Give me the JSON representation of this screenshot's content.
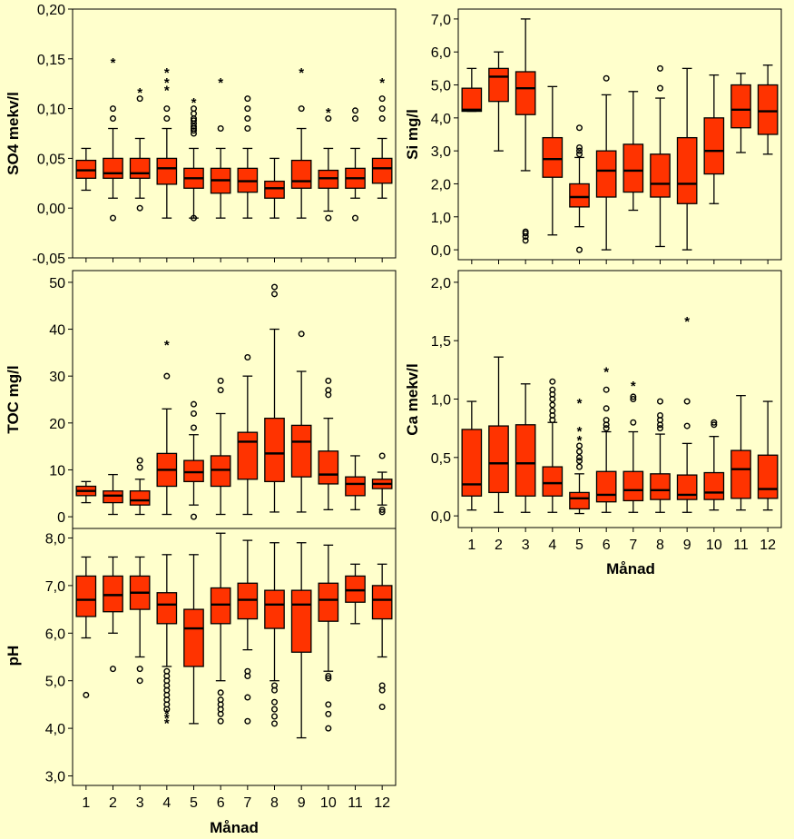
{
  "colors": {
    "box_fill": "#ff3300",
    "panel_bg": "#ffffcc",
    "page_bg": "#ffffcc",
    "ink": "#000000"
  },
  "chart_data": [
    {
      "id": "so4",
      "type": "boxplot",
      "ylabel": "SO4  mekv/l",
      "xlabel": "",
      "ylim": [
        -0.05,
        0.2
      ],
      "yticks": [
        -0.05,
        0.0,
        0.05,
        0.1,
        0.15,
        0.2
      ],
      "ytick_labels": [
        "-0,05",
        "0,00",
        "0,05",
        "0,10",
        "0,15",
        "0,20"
      ],
      "categories": [
        "1",
        "2",
        "3",
        "4",
        "5",
        "6",
        "7",
        "8",
        "9",
        "10",
        "11",
        "12"
      ],
      "show_xticklabels": false,
      "boxes": [
        {
          "low": 0.018,
          "q1": 0.03,
          "median": 0.038,
          "q3": 0.048,
          "high": 0.06,
          "outliers": [],
          "extremes": []
        },
        {
          "low": 0.01,
          "q1": 0.03,
          "median": 0.035,
          "q3": 0.05,
          "high": 0.08,
          "outliers": [
            -0.01,
            0.09,
            0.1
          ],
          "extremes": [
            0.148
          ]
        },
        {
          "low": 0.01,
          "q1": 0.03,
          "median": 0.035,
          "q3": 0.05,
          "high": 0.07,
          "outliers": [
            0.0,
            0.11
          ],
          "extremes": [
            0.118
          ]
        },
        {
          "low": -0.01,
          "q1": 0.024,
          "median": 0.04,
          "q3": 0.05,
          "high": 0.08,
          "outliers": [
            0.09,
            0.1
          ],
          "extremes": [
            0.12,
            0.128,
            0.138
          ]
        },
        {
          "low": -0.01,
          "q1": 0.02,
          "median": 0.03,
          "q3": 0.04,
          "high": 0.06,
          "outliers": [
            -0.01,
            0.075,
            0.078,
            0.08,
            0.082,
            0.085,
            0.088,
            0.09,
            0.095,
            0.1
          ],
          "extremes": [
            0.108
          ]
        },
        {
          "low": -0.01,
          "q1": 0.015,
          "median": 0.028,
          "q3": 0.04,
          "high": 0.06,
          "outliers": [
            0.08
          ],
          "extremes": [
            0.128
          ]
        },
        {
          "low": -0.01,
          "q1": 0.016,
          "median": 0.027,
          "q3": 0.04,
          "high": 0.06,
          "outliers": [
            0.08,
            0.09,
            0.1,
            0.11
          ],
          "extremes": []
        },
        {
          "low": -0.01,
          "q1": 0.01,
          "median": 0.02,
          "q3": 0.027,
          "high": 0.05,
          "outliers": [],
          "extremes": []
        },
        {
          "low": -0.01,
          "q1": 0.02,
          "median": 0.027,
          "q3": 0.048,
          "high": 0.08,
          "outliers": [
            0.1
          ],
          "extremes": [
            0.138
          ]
        },
        {
          "low": -0.003,
          "q1": 0.02,
          "median": 0.03,
          "q3": 0.038,
          "high": 0.06,
          "outliers": [
            -0.01,
            0.09
          ],
          "extremes": [
            0.098
          ]
        },
        {
          "low": 0.01,
          "q1": 0.02,
          "median": 0.03,
          "q3": 0.04,
          "high": 0.06,
          "outliers": [
            -0.01,
            0.09,
            0.098
          ],
          "extremes": []
        },
        {
          "low": 0.01,
          "q1": 0.025,
          "median": 0.04,
          "q3": 0.05,
          "high": 0.07,
          "outliers": [
            0.09,
            0.1,
            0.11
          ],
          "extremes": [
            0.128
          ]
        }
      ]
    },
    {
      "id": "si",
      "type": "boxplot",
      "ylabel": "Si  mg/l",
      "xlabel": "",
      "ylim": [
        -0.3,
        7.3
      ],
      "yticks": [
        0,
        1,
        2,
        3,
        4,
        5,
        6,
        7
      ],
      "ytick_labels": [
        "0,0",
        "1,0",
        "2,0",
        "3,0",
        "4,0",
        "5,0",
        "6,0",
        "7,0"
      ],
      "categories": [
        "1",
        "2",
        "3",
        "4",
        "5",
        "6",
        "7",
        "8",
        "9",
        "10",
        "11",
        "12"
      ],
      "show_xticklabels": false,
      "boxes": [
        {
          "low": 4.2,
          "q1": 4.2,
          "median": 4.25,
          "q3": 4.9,
          "high": 5.5,
          "outliers": [],
          "extremes": []
        },
        {
          "low": 3.0,
          "q1": 4.5,
          "median": 5.25,
          "q3": 5.5,
          "high": 6.0,
          "outliers": [],
          "extremes": []
        },
        {
          "low": 2.4,
          "q1": 4.1,
          "median": 4.9,
          "q3": 5.4,
          "high": 7.0,
          "outliers": [
            0.28,
            0.4,
            0.5,
            0.55
          ],
          "extremes": []
        },
        {
          "low": 0.45,
          "q1": 2.2,
          "median": 2.75,
          "q3": 3.4,
          "high": 4.95,
          "outliers": [],
          "extremes": []
        },
        {
          "low": 0.7,
          "q1": 1.3,
          "median": 1.6,
          "q3": 2.0,
          "high": 2.8,
          "outliers": [
            0.0,
            2.9,
            3.0,
            3.1,
            3.7
          ],
          "extremes": []
        },
        {
          "low": 0.0,
          "q1": 1.6,
          "median": 2.4,
          "q3": 3.0,
          "high": 4.7,
          "outliers": [
            5.2
          ],
          "extremes": []
        },
        {
          "low": 1.2,
          "q1": 1.75,
          "median": 2.4,
          "q3": 3.2,
          "high": 4.8,
          "outliers": [],
          "extremes": []
        },
        {
          "low": 0.1,
          "q1": 1.6,
          "median": 2.0,
          "q3": 2.9,
          "high": 4.6,
          "outliers": [
            4.9,
            5.5
          ],
          "extremes": []
        },
        {
          "low": 0.0,
          "q1": 1.4,
          "median": 2.0,
          "q3": 3.4,
          "high": 5.5,
          "outliers": [],
          "extremes": []
        },
        {
          "low": 1.4,
          "q1": 2.3,
          "median": 3.0,
          "q3": 4.0,
          "high": 5.3,
          "outliers": [],
          "extremes": []
        },
        {
          "low": 2.95,
          "q1": 3.7,
          "median": 4.25,
          "q3": 5.0,
          "high": 5.35,
          "outliers": [],
          "extremes": []
        },
        {
          "low": 2.9,
          "q1": 3.5,
          "median": 4.2,
          "q3": 5.0,
          "high": 5.6,
          "outliers": [],
          "extremes": []
        }
      ]
    },
    {
      "id": "toc",
      "type": "boxplot",
      "ylabel": "TOC  mg/l",
      "xlabel": "",
      "ylim": [
        -2.5,
        52.5
      ],
      "yticks": [
        0,
        10,
        20,
        30,
        40,
        50
      ],
      "ytick_labels": [
        "0",
        "10",
        "20",
        "30",
        "40",
        "50"
      ],
      "categories": [
        "1",
        "2",
        "3",
        "4",
        "5",
        "6",
        "7",
        "8",
        "9",
        "10",
        "11",
        "12"
      ],
      "show_xticklabels": false,
      "boxes": [
        {
          "low": 3.0,
          "q1": 4.5,
          "median": 5.5,
          "q3": 6.5,
          "high": 7.5,
          "outliers": [],
          "extremes": []
        },
        {
          "low": 0.5,
          "q1": 3.0,
          "median": 4.5,
          "q3": 5.5,
          "high": 9.0,
          "outliers": [],
          "extremes": []
        },
        {
          "low": 0.5,
          "q1": 2.5,
          "median": 3.5,
          "q3": 5.5,
          "high": 8.0,
          "outliers": [
            10.5,
            12.0
          ],
          "extremes": []
        },
        {
          "low": 0.5,
          "q1": 6.5,
          "median": 10.0,
          "q3": 13.5,
          "high": 23.0,
          "outliers": [
            30.0
          ],
          "extremes": [
            37.0
          ]
        },
        {
          "low": 2.5,
          "q1": 7.5,
          "median": 9.5,
          "q3": 12.0,
          "high": 17.5,
          "outliers": [
            0.0,
            19.0,
            22.0,
            24.0
          ],
          "extremes": []
        },
        {
          "low": 0.5,
          "q1": 6.5,
          "median": 10.0,
          "q3": 13.0,
          "high": 22.0,
          "outliers": [
            27.0,
            29.0
          ],
          "extremes": []
        },
        {
          "low": 0.5,
          "q1": 8.0,
          "median": 16.0,
          "q3": 18.0,
          "high": 30.0,
          "outliers": [
            34.0
          ],
          "extremes": []
        },
        {
          "low": 1.0,
          "q1": 7.5,
          "median": 13.5,
          "q3": 21.0,
          "high": 40.0,
          "outliers": [
            47.5,
            49.0
          ],
          "extremes": []
        },
        {
          "low": 1.0,
          "q1": 8.5,
          "median": 16.0,
          "q3": 19.5,
          "high": 31.0,
          "outliers": [
            39.0
          ],
          "extremes": []
        },
        {
          "low": 1.5,
          "q1": 7.0,
          "median": 9.0,
          "q3": 14.0,
          "high": 21.0,
          "outliers": [
            26.0,
            27.0,
            29.0
          ],
          "extremes": []
        },
        {
          "low": 1.5,
          "q1": 4.5,
          "median": 7.0,
          "q3": 8.5,
          "high": 13.0,
          "outliers": [],
          "extremes": []
        },
        {
          "low": 2.5,
          "q1": 6.0,
          "median": 7.0,
          "q3": 8.0,
          "high": 9.5,
          "outliers": [
            1.0,
            1.5,
            13.0
          ],
          "extremes": []
        }
      ]
    },
    {
      "id": "ca",
      "type": "boxplot",
      "ylabel": "Ca mekv/l",
      "xlabel": "Månad",
      "ylim": [
        -0.1,
        2.1
      ],
      "yticks": [
        0,
        0.5,
        1.0,
        1.5,
        2.0
      ],
      "ytick_labels": [
        "0,0",
        "0,5",
        "1,0",
        "1,5",
        "2,0"
      ],
      "categories": [
        "1",
        "2",
        "3",
        "4",
        "5",
        "6",
        "7",
        "8",
        "9",
        "10",
        "11",
        "12"
      ],
      "show_xticklabels": true,
      "boxes": [
        {
          "low": 0.05,
          "q1": 0.17,
          "median": 0.27,
          "q3": 0.74,
          "high": 0.98,
          "outliers": [],
          "extremes": []
        },
        {
          "low": 0.03,
          "q1": 0.2,
          "median": 0.45,
          "q3": 0.77,
          "high": 1.36,
          "outliers": [],
          "extremes": []
        },
        {
          "low": 0.03,
          "q1": 0.17,
          "median": 0.45,
          "q3": 0.78,
          "high": 1.13,
          "outliers": [],
          "extremes": []
        },
        {
          "low": 0.03,
          "q1": 0.17,
          "median": 0.28,
          "q3": 0.42,
          "high": 0.8,
          "outliers": [
            0.82,
            0.86,
            0.9,
            0.95,
            1.0,
            1.04,
            1.08,
            1.15
          ],
          "extremes": []
        },
        {
          "low": 0.02,
          "q1": 0.06,
          "median": 0.15,
          "q3": 0.2,
          "high": 0.36,
          "outliers": [
            0.42,
            0.47,
            0.5,
            0.55,
            0.6
          ],
          "extremes": [
            0.66,
            0.74,
            0.98
          ]
        },
        {
          "low": 0.03,
          "q1": 0.12,
          "median": 0.18,
          "q3": 0.38,
          "high": 0.72,
          "outliers": [
            0.75,
            0.78,
            0.82,
            0.92,
            1.08
          ],
          "extremes": [
            1.25
          ]
        },
        {
          "low": 0.03,
          "q1": 0.13,
          "median": 0.22,
          "q3": 0.38,
          "high": 0.72,
          "outliers": [
            0.8,
            1.0,
            1.02
          ],
          "extremes": [
            1.13
          ]
        },
        {
          "low": 0.03,
          "q1": 0.14,
          "median": 0.22,
          "q3": 0.36,
          "high": 0.7,
          "outliers": [
            0.75,
            0.78,
            0.82,
            0.86,
            0.98
          ],
          "extremes": []
        },
        {
          "low": 0.03,
          "q1": 0.14,
          "median": 0.18,
          "q3": 0.35,
          "high": 0.62,
          "outliers": [
            0.77,
            0.98
          ],
          "extremes": [
            1.68
          ]
        },
        {
          "low": 0.05,
          "q1": 0.14,
          "median": 0.2,
          "q3": 0.37,
          "high": 0.68,
          "outliers": [
            0.78,
            0.8
          ],
          "extremes": []
        },
        {
          "low": 0.05,
          "q1": 0.15,
          "median": 0.4,
          "q3": 0.56,
          "high": 1.03,
          "outliers": [],
          "extremes": []
        },
        {
          "low": 0.05,
          "q1": 0.15,
          "median": 0.23,
          "q3": 0.52,
          "high": 0.98,
          "outliers": [],
          "extremes": []
        }
      ]
    },
    {
      "id": "ph",
      "type": "boxplot",
      "ylabel": "pH",
      "xlabel": "Månad",
      "ylim": [
        2.8,
        8.2
      ],
      "yticks": [
        3,
        4,
        5,
        6,
        7,
        8
      ],
      "ytick_labels": [
        "3,0",
        "4,0",
        "5,0",
        "6,0",
        "7,0",
        "8,0"
      ],
      "categories": [
        "1",
        "2",
        "3",
        "4",
        "5",
        "6",
        "7",
        "8",
        "9",
        "10",
        "11",
        "12"
      ],
      "show_xticklabels": true,
      "boxes": [
        {
          "low": 5.9,
          "q1": 6.35,
          "median": 6.7,
          "q3": 7.2,
          "high": 7.6,
          "outliers": [
            4.7
          ],
          "extremes": []
        },
        {
          "low": 6.0,
          "q1": 6.45,
          "median": 6.8,
          "q3": 7.2,
          "high": 7.6,
          "outliers": [
            5.25
          ],
          "extremes": []
        },
        {
          "low": 5.5,
          "q1": 6.5,
          "median": 6.85,
          "q3": 7.2,
          "high": 7.6,
          "outliers": [
            5.0,
            5.25
          ],
          "extremes": []
        },
        {
          "low": 5.3,
          "q1": 6.2,
          "median": 6.6,
          "q3": 6.85,
          "high": 7.65,
          "outliers": [
            4.4,
            4.5,
            4.6,
            4.7,
            4.8,
            4.9,
            5.0,
            5.1,
            5.2
          ],
          "extremes": [
            4.15,
            4.25,
            4.35
          ]
        },
        {
          "low": 4.1,
          "q1": 5.3,
          "median": 6.1,
          "q3": 6.5,
          "high": 7.65,
          "outliers": [],
          "extremes": []
        },
        {
          "low": 5.0,
          "q1": 6.2,
          "median": 6.6,
          "q3": 6.95,
          "high": 8.1,
          "outliers": [
            4.15,
            4.3,
            4.4,
            4.5,
            4.6,
            4.75
          ],
          "extremes": []
        },
        {
          "low": 5.65,
          "q1": 6.3,
          "median": 6.7,
          "q3": 7.05,
          "high": 7.95,
          "outliers": [
            4.15,
            4.65,
            5.1,
            5.2
          ],
          "extremes": []
        },
        {
          "low": 5.0,
          "q1": 6.1,
          "median": 6.6,
          "q3": 6.9,
          "high": 7.9,
          "outliers": [
            4.1,
            4.25,
            4.4,
            4.55,
            4.8,
            4.9
          ],
          "extremes": []
        },
        {
          "low": 3.8,
          "q1": 5.6,
          "median": 6.6,
          "q3": 6.9,
          "high": 7.9,
          "outliers": [],
          "extremes": []
        },
        {
          "low": 5.2,
          "q1": 6.25,
          "median": 6.7,
          "q3": 7.05,
          "high": 7.85,
          "outliers": [
            4.0,
            4.3,
            4.5,
            5.05,
            5.1
          ],
          "extremes": []
        },
        {
          "low": 6.2,
          "q1": 6.65,
          "median": 6.9,
          "q3": 7.2,
          "high": 7.45,
          "outliers": [],
          "extremes": []
        },
        {
          "low": 5.5,
          "q1": 6.3,
          "median": 6.7,
          "q3": 7.0,
          "high": 7.45,
          "outliers": [
            4.45,
            4.8,
            4.9
          ],
          "extremes": []
        }
      ]
    }
  ]
}
